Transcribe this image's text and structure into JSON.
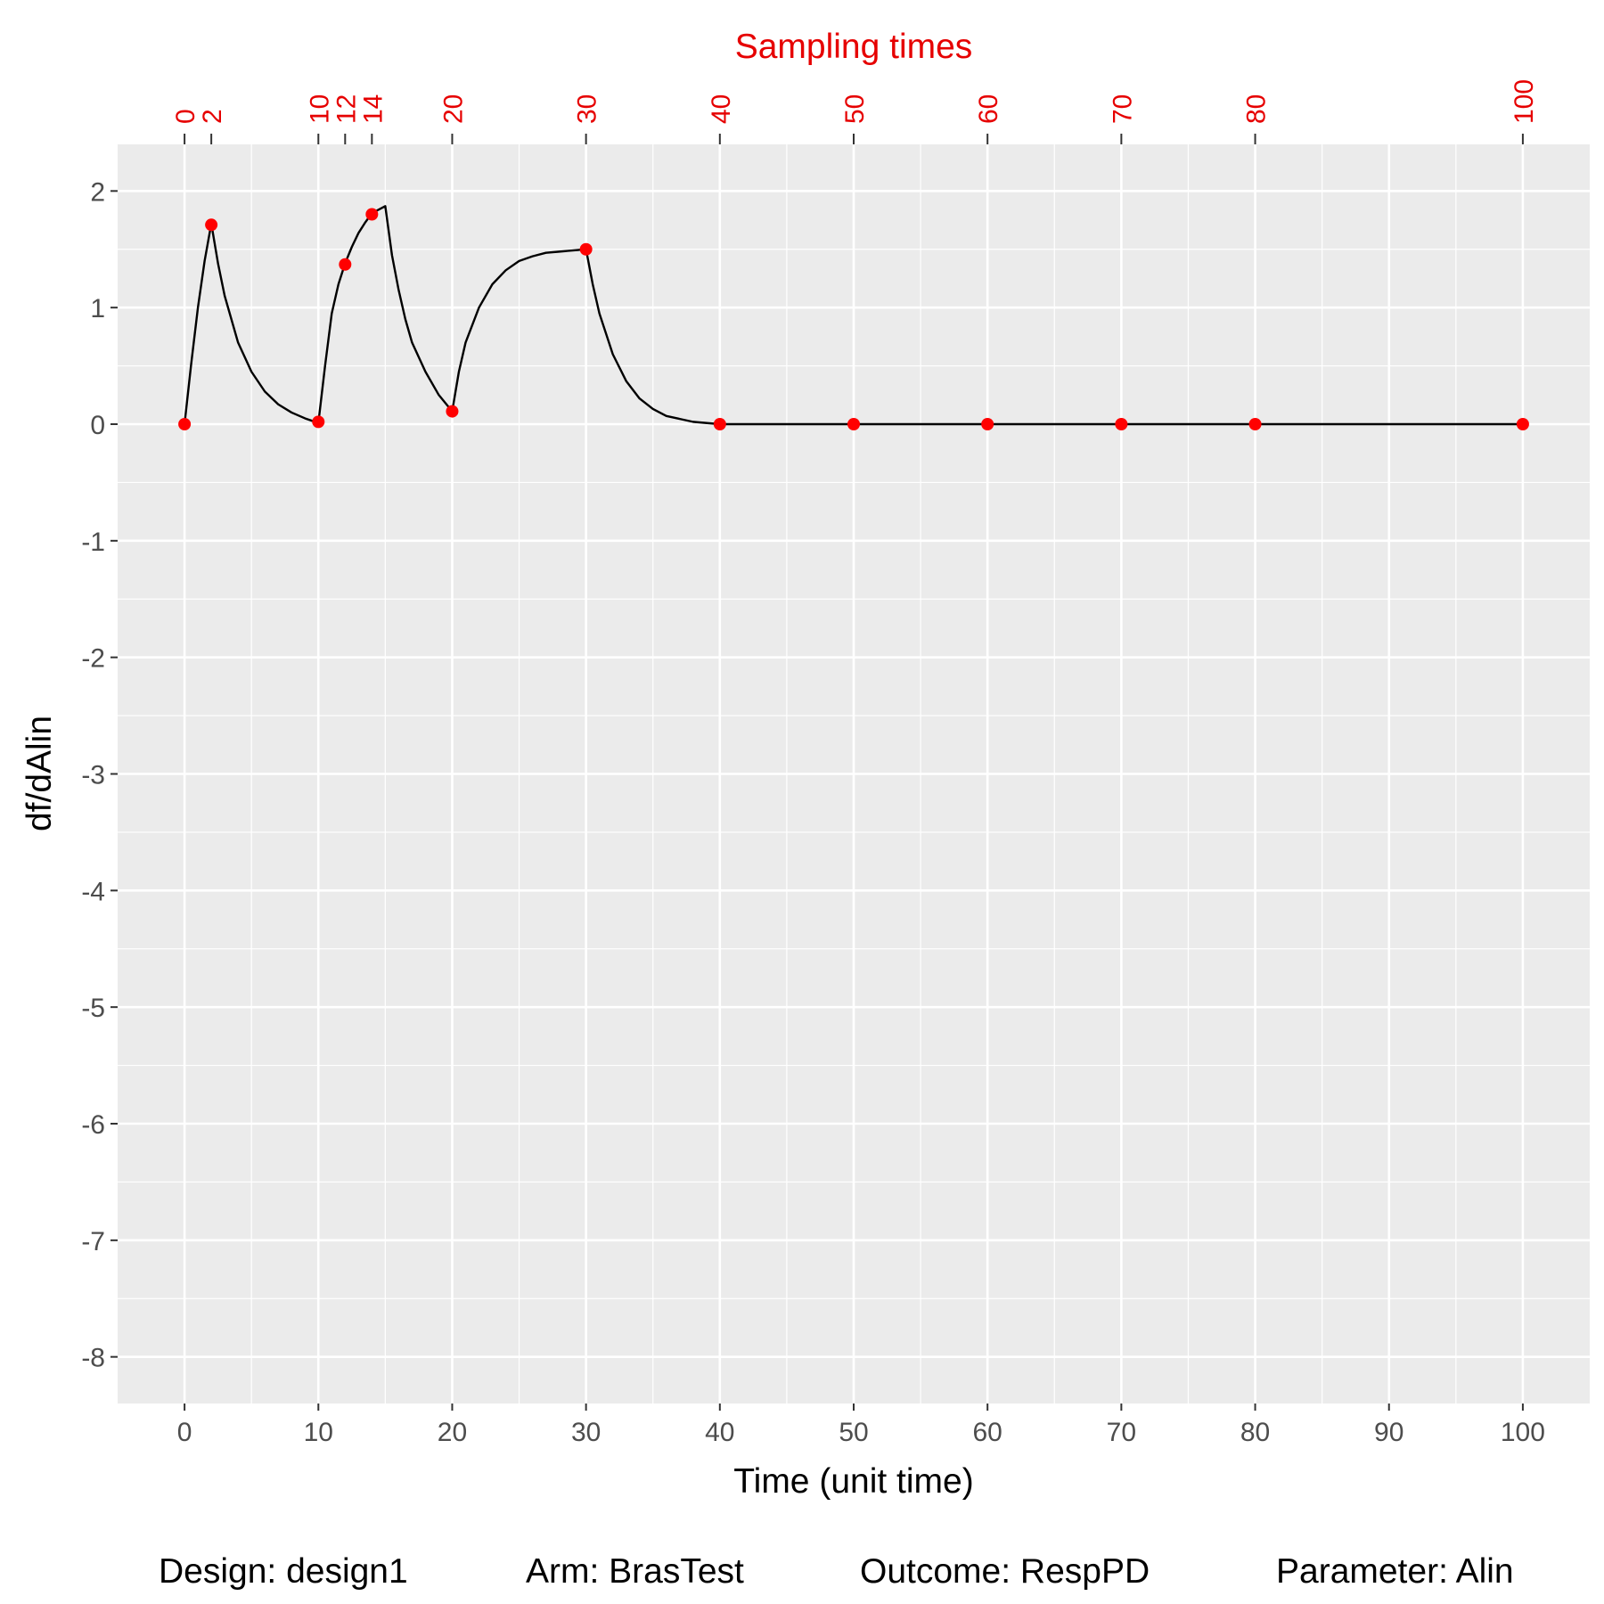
{
  "chart_data": {
    "type": "line",
    "title": "",
    "xlabel": "Time (unit time)",
    "ylabel": "df/dAlin",
    "xlim": [
      -5,
      105
    ],
    "ylim": [
      -8.4,
      2.4
    ],
    "x_ticks": [
      0,
      10,
      20,
      30,
      40,
      50,
      60,
      70,
      80,
      90,
      100
    ],
    "y_ticks": [
      2,
      1,
      0,
      -1,
      -2,
      -3,
      -4,
      -5,
      -6,
      -7,
      -8
    ],
    "y_tick_labels": [
      "2",
      "1",
      "0",
      "-1",
      "-2",
      "-3",
      "-4",
      "-5",
      "-6",
      "-7",
      "-8"
    ],
    "grid": true,
    "top_axis": {
      "title": "Sampling times",
      "ticks": [
        0,
        2,
        10,
        12,
        14,
        20,
        30,
        40,
        50,
        60,
        70,
        80,
        100
      ],
      "color": "#e60000"
    },
    "series": [
      {
        "kind": "line",
        "color": "#000000",
        "x": [
          0,
          0.5,
          1,
          1.5,
          2,
          2.5,
          3,
          4,
          5,
          6,
          7,
          8,
          9,
          10,
          10.5,
          11,
          11.5,
          12,
          12.5,
          13,
          13.5,
          14,
          14.5,
          15,
          15.5,
          16,
          16.5,
          17,
          18,
          19,
          20,
          20.5,
          21,
          22,
          23,
          24,
          25,
          26,
          27,
          28,
          29,
          30,
          30.5,
          31,
          32,
          33,
          34,
          35,
          36,
          38,
          40,
          50,
          60,
          70,
          80,
          90,
          100
        ],
        "y": [
          0,
          0.52,
          1.0,
          1.4,
          1.72,
          1.38,
          1.1,
          0.7,
          0.45,
          0.28,
          0.17,
          0.1,
          0.05,
          0.01,
          0.5,
          0.95,
          1.2,
          1.38,
          1.52,
          1.64,
          1.73,
          1.81,
          1.84,
          1.87,
          1.45,
          1.15,
          0.9,
          0.7,
          0.45,
          0.25,
          0.11,
          0.45,
          0.7,
          1.0,
          1.2,
          1.32,
          1.4,
          1.44,
          1.47,
          1.48,
          1.49,
          1.5,
          1.2,
          0.95,
          0.6,
          0.37,
          0.22,
          0.13,
          0.07,
          0.02,
          0.0,
          0.0,
          0.0,
          0.0,
          0.0,
          0.0,
          0.0
        ]
      },
      {
        "kind": "points",
        "color": "#ff0000",
        "x": [
          0,
          2,
          10,
          12,
          14,
          20,
          30,
          40,
          50,
          60,
          70,
          80,
          100
        ],
        "y": [
          0,
          1.71,
          0.02,
          1.37,
          1.8,
          0.11,
          1.5,
          0.0,
          0.0,
          0.0,
          0.0,
          0.0,
          0.0
        ]
      }
    ]
  },
  "footer": {
    "design": "Design: design1",
    "arm": "Arm: BrasTest",
    "outcome": "Outcome: RespPD",
    "parameter": "Parameter: Alin"
  }
}
